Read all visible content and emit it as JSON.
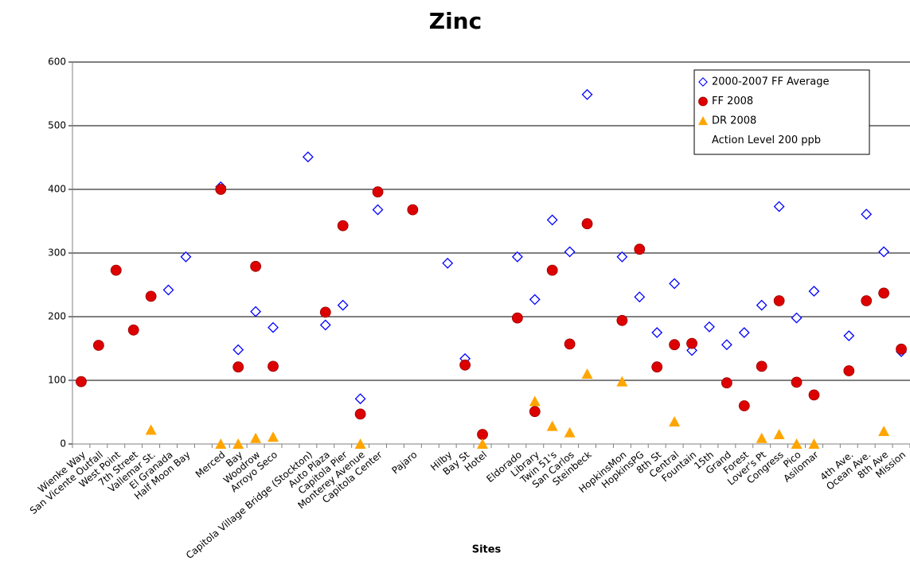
{
  "chart_data": {
    "type": "scatter",
    "title": "Zinc",
    "x_label": "Sites",
    "categories": [
      "Wienke Way",
      "San Vicente Outfall",
      "West Point",
      "7th Street",
      "Vallemar St.",
      "El Granada",
      "Half Moon Bay",
      null,
      "Merced",
      "Bay",
      "Woodrow",
      "Arroyo Seco",
      null,
      "Capitola Village Bridge (Stockton)",
      "Auto Plaza",
      "Capitola Pier",
      "Monterey Avenue",
      "Capitola Center",
      null,
      "Pajaro",
      null,
      "Hilby",
      "Bay St",
      "Hotel",
      null,
      "Eldorado",
      "Library",
      "Twin 51's",
      "San Carlos",
      "Steinbeck",
      null,
      "HopkinsMon",
      "HopkinsPG",
      "8th St",
      "Central",
      "Fountain",
      "15th",
      "Grand",
      "Forest",
      "Lover's Pt",
      "Congress",
      "Pico",
      "Asilomar",
      null,
      "4th Ave.",
      "Ocean Ave.",
      "8th Ave",
      "Mission"
    ],
    "series": [
      {
        "name": "2000-2007 FF Average",
        "color": "#0000ff",
        "marker": "diamond",
        "values": [
          null,
          null,
          null,
          null,
          null,
          242,
          294,
          null,
          404,
          148,
          208,
          183,
          null,
          451,
          187,
          218,
          71,
          368,
          null,
          null,
          null,
          284,
          134,
          null,
          null,
          294,
          227,
          352,
          302,
          549,
          null,
          294,
          231,
          175,
          252,
          147,
          184,
          156,
          175,
          218,
          373,
          198,
          240,
          null,
          170,
          361,
          302,
          145
        ]
      },
      {
        "name": "FF 2008",
        "color": "#dd0000",
        "marker": "circle",
        "values": [
          98,
          155,
          273,
          179,
          232,
          null,
          null,
          null,
          400,
          121,
          279,
          122,
          null,
          null,
          207,
          343,
          47,
          396,
          null,
          368,
          null,
          null,
          124,
          15,
          null,
          198,
          51,
          273,
          157,
          346,
          null,
          194,
          306,
          121,
          156,
          158,
          null,
          96,
          60,
          122,
          225,
          97,
          77,
          null,
          115,
          225,
          237,
          149
        ]
      },
      {
        "name": "DR 2008",
        "color": "#ffa500",
        "marker": "triangle",
        "values": [
          null,
          null,
          null,
          null,
          22,
          null,
          null,
          null,
          0,
          0,
          9,
          11,
          null,
          null,
          null,
          null,
          0,
          null,
          null,
          null,
          null,
          null,
          null,
          0,
          null,
          null,
          67,
          28,
          18,
          110,
          null,
          98,
          null,
          null,
          35,
          null,
          null,
          null,
          null,
          9,
          15,
          0,
          0,
          null,
          null,
          null,
          20,
          null
        ]
      },
      {
        "name": "Action Level 200 ppb"
      }
    ],
    "ylim": [
      0,
      600
    ],
    "yticks": [
      0,
      100,
      200,
      300,
      400,
      500,
      600
    ],
    "grid": true,
    "legend": "upper right"
  }
}
